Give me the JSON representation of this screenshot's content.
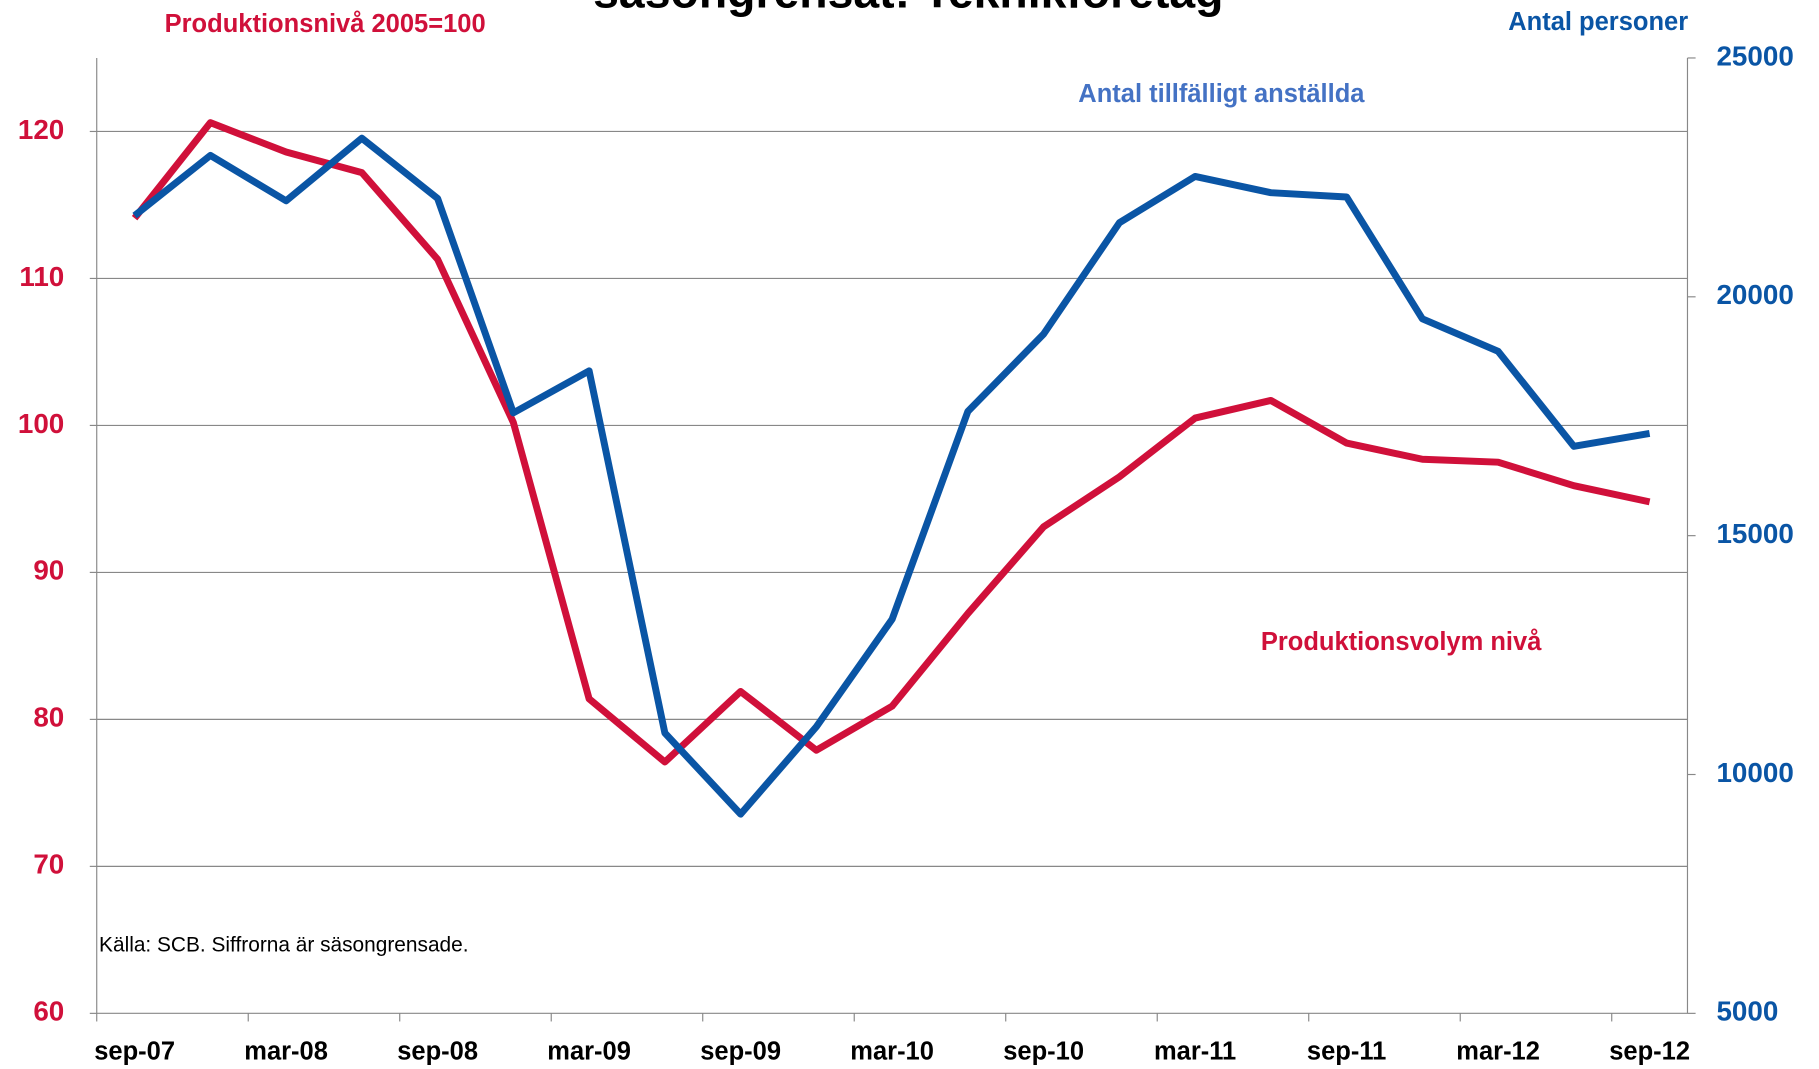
{
  "chart_data": {
    "type": "line",
    "title": "säsongrensat: Teknikföretag",
    "y_label": "Produktionsnivå 2005=100",
    "y2_label": "Antal personer",
    "annotations": [
      "Antal tillfälligt anställda",
      "Produktionsvolym nivå",
      "Källa: SCB. Siffrorna är säsongrensade."
    ],
    "categories": [
      "sep-07",
      null,
      "mar-08",
      null,
      "sep-08",
      null,
      "mar-09",
      null,
      "sep-09",
      null,
      "mar-10",
      null,
      "sep-10",
      null,
      "mar-11",
      null,
      "sep-11",
      null,
      "mar-12",
      null,
      "sep-12"
    ],
    "series": [
      {
        "name": "Produktionsvolym nivå",
        "color": "#d0103a",
        "axis": "y",
        "values": [
          114.1,
          120.6,
          118.6,
          117.2,
          111.3,
          100.2,
          81.4,
          77.1,
          81.9,
          77.9,
          80.9,
          87.2,
          93.1,
          96.5,
          100.5,
          101.7,
          98.8,
          97.7,
          97.5,
          95.9,
          94.8
        ]
      },
      {
        "name": "Antal tillfälligt anställda",
        "color": "#0a55a5",
        "axis": "y2",
        "values": [
          21700,
          22960,
          22010,
          23320,
          22060,
          17570,
          18450,
          10870,
          9170,
          11000,
          13250,
          17600,
          19220,
          21550,
          22520,
          22180,
          22090,
          19540,
          18860,
          16870,
          17140
        ]
      }
    ],
    "ylim": [
      60,
      125
    ],
    "yticks": [
      60,
      70,
      80,
      90,
      100,
      110,
      120
    ],
    "y2lim": [
      5000,
      25000
    ],
    "y2ticks": [
      5000,
      10000,
      15000,
      20000,
      25000
    ],
    "grid": true
  }
}
